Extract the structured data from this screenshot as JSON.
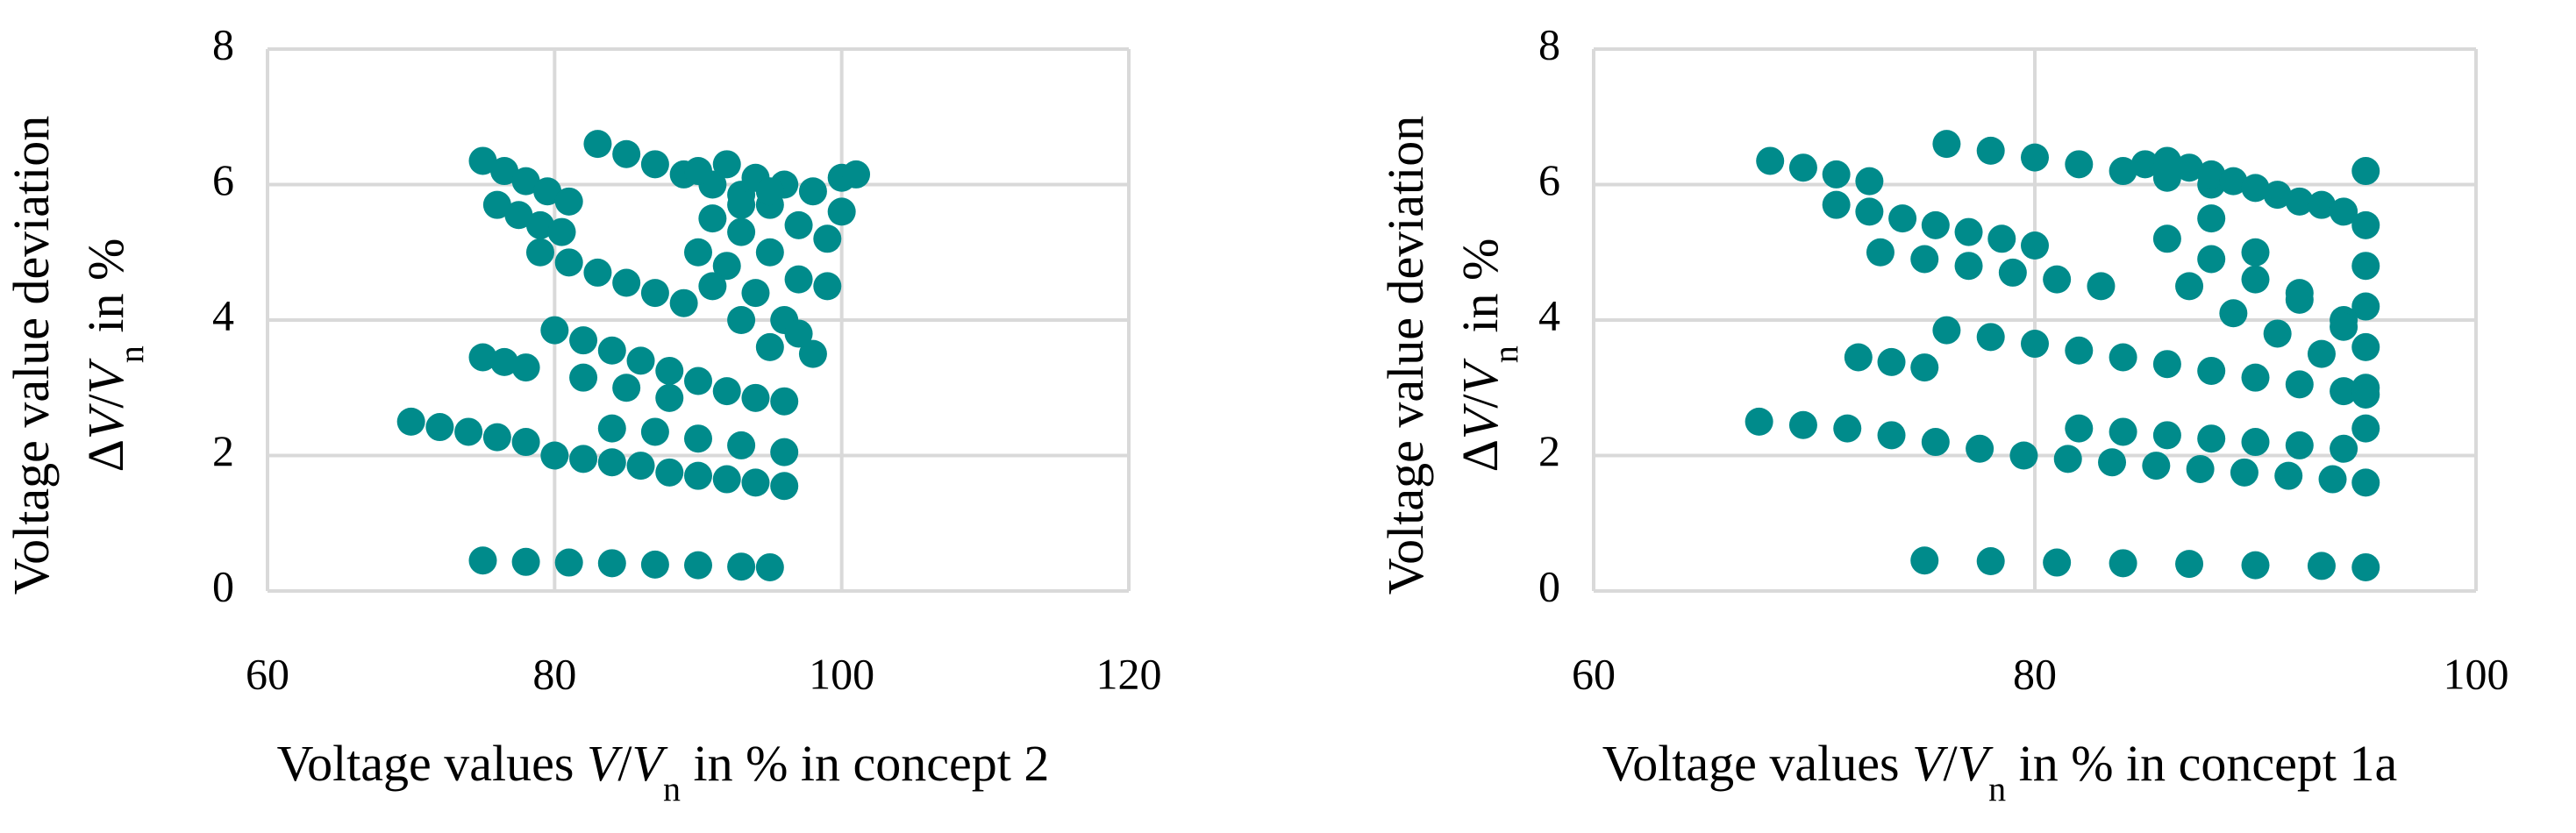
{
  "chart_data": [
    {
      "type": "scatter",
      "color": "#008b8b",
      "grid": true,
      "x_label": [
        "Voltage values ",
        "V",
        "/",
        "V",
        "n",
        " in % in concept 2"
      ],
      "y_label_line1": "Voltage value deviation",
      "y_label_line2": [
        "Δ",
        "V",
        "/",
        "V",
        "n",
        " in %"
      ],
      "xlim": [
        60,
        120
      ],
      "ylim": [
        0,
        8
      ],
      "xticks": [
        60,
        80,
        100,
        120
      ],
      "yticks": [
        0,
        2,
        4,
        6,
        8
      ],
      "x": [
        75,
        76.5,
        78,
        79.5,
        81,
        76,
        77.5,
        79,
        80.5,
        79,
        81,
        83,
        85,
        87,
        89,
        75,
        76.5,
        78,
        70,
        72,
        74,
        76,
        78,
        80,
        82,
        84,
        86,
        88,
        90,
        92,
        94,
        96,
        75,
        78,
        81,
        84,
        87,
        90,
        93,
        95,
        83,
        85,
        87,
        89,
        91,
        93,
        95,
        80,
        82,
        84,
        86,
        88,
        90,
        92,
        94,
        96,
        82,
        85,
        88,
        84,
        87,
        90,
        93,
        96,
        90,
        92,
        94,
        96,
        98,
        100,
        101,
        91,
        93,
        95,
        97,
        99,
        100,
        92,
        94,
        96,
        98,
        97,
        99,
        95,
        93,
        91,
        90,
        97,
        95,
        93
      ],
      "y": [
        6.35,
        6.2,
        6.05,
        5.9,
        5.75,
        5.7,
        5.55,
        5.4,
        5.3,
        5.0,
        4.85,
        4.7,
        4.55,
        4.4,
        4.25,
        3.45,
        3.38,
        3.3,
        2.5,
        2.42,
        2.35,
        2.27,
        2.2,
        2.0,
        1.95,
        1.9,
        1.85,
        1.75,
        1.7,
        1.65,
        1.6,
        1.55,
        0.45,
        0.43,
        0.42,
        0.41,
        0.39,
        0.38,
        0.36,
        0.35,
        6.6,
        6.45,
        6.3,
        6.15,
        6.0,
        5.85,
        5.7,
        3.85,
        3.7,
        3.55,
        3.4,
        3.25,
        3.1,
        2.95,
        2.85,
        2.8,
        3.15,
        3.0,
        2.85,
        2.4,
        2.35,
        2.25,
        2.15,
        2.05,
        6.2,
        6.3,
        6.1,
        6.0,
        5.9,
        6.1,
        6.15,
        5.5,
        5.3,
        5.0,
        4.6,
        5.2,
        5.6,
        4.8,
        4.4,
        4.0,
        3.5,
        3.8,
        4.5,
        3.6,
        4.0,
        4.5,
        5.0,
        5.4,
        5.9,
        5.7
      ]
    },
    {
      "type": "scatter",
      "color": "#008b8b",
      "grid": true,
      "x_label": [
        "Voltage values ",
        "V",
        "/",
        "V",
        "n",
        " in % in concept 1a"
      ],
      "y_label_line1": "Voltage value deviation",
      "y_label_line2": [
        "Δ",
        "V",
        "/",
        "V",
        "n",
        " in %"
      ],
      "xlim": [
        60,
        100
      ],
      "ylim": [
        0,
        8
      ],
      "xticks": [
        60,
        80,
        100
      ],
      "yticks": [
        0,
        2,
        4,
        6,
        8
      ],
      "x": [
        68,
        69.5,
        71,
        72.5,
        71,
        72.5,
        74,
        75.5,
        77,
        78.5,
        80,
        73,
        75,
        77,
        79,
        81,
        83,
        72,
        73.5,
        75,
        67.5,
        69.5,
        71.5,
        73.5,
        75.5,
        77.5,
        79.5,
        81.5,
        83.5,
        85.5,
        87.5,
        89.5,
        91.5,
        93.5,
        95,
        75,
        78,
        81,
        84,
        87,
        90,
        93,
        95,
        76,
        78,
        80,
        82,
        84,
        86,
        88,
        76,
        78,
        80,
        82,
        84,
        86,
        88,
        90,
        92,
        94,
        95,
        82,
        84,
        86,
        88,
        90,
        92,
        94,
        85,
        86,
        87,
        88,
        89,
        90,
        91,
        92,
        93,
        94,
        95,
        95,
        95,
        95,
        95,
        95,
        95,
        86,
        88,
        90,
        92,
        94,
        87,
        89,
        91,
        93,
        88,
        90,
        92,
        94
      ],
      "y": [
        6.35,
        6.25,
        6.15,
        6.05,
        5.7,
        5.6,
        5.5,
        5.4,
        5.3,
        5.2,
        5.1,
        5.0,
        4.9,
        4.8,
        4.7,
        4.6,
        4.5,
        3.45,
        3.38,
        3.3,
        2.5,
        2.45,
        2.4,
        2.3,
        2.2,
        2.1,
        2.0,
        1.95,
        1.9,
        1.85,
        1.8,
        1.75,
        1.7,
        1.65,
        1.6,
        0.45,
        0.44,
        0.42,
        0.41,
        0.4,
        0.38,
        0.37,
        0.35,
        6.6,
        6.5,
        6.4,
        6.3,
        6.2,
        6.1,
        6.0,
        3.85,
        3.75,
        3.65,
        3.55,
        3.45,
        3.35,
        3.25,
        3.15,
        3.05,
        2.95,
        2.9,
        2.4,
        2.35,
        2.3,
        2.25,
        2.2,
        2.15,
        2.1,
        6.3,
        6.35,
        6.25,
        6.15,
        6.05,
        5.95,
        5.85,
        5.75,
        5.7,
        5.6,
        6.2,
        5.4,
        4.8,
        4.2,
        3.6,
        3.0,
        2.4,
        5.2,
        4.9,
        4.6,
        4.3,
        4.0,
        4.5,
        4.1,
        3.8,
        3.5,
        5.5,
        5.0,
        4.4,
        3.9
      ]
    }
  ]
}
